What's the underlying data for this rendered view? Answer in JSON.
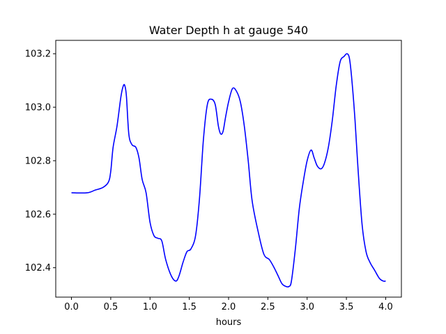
{
  "chart_data": {
    "type": "line",
    "title": "Water Depth h at gauge 540",
    "xlabel": "hours",
    "ylabel": "",
    "xlim": [
      -0.2,
      4.2
    ],
    "ylim": [
      102.29,
      103.25
    ],
    "xticks": [
      0.0,
      0.5,
      1.0,
      1.5,
      2.0,
      2.5,
      3.0,
      3.5,
      4.0
    ],
    "xtick_labels": [
      "0.0",
      "0.5",
      "1.0",
      "1.5",
      "2.0",
      "2.5",
      "3.0",
      "3.5",
      "4.0"
    ],
    "yticks": [
      102.4,
      102.6,
      102.8,
      103.0,
      103.2
    ],
    "ytick_labels": [
      "102.4",
      "102.6",
      "102.8",
      "103.0",
      "103.2"
    ],
    "grid": false,
    "series": [
      {
        "color": "#0000ff",
        "x": [
          0.0,
          0.2,
          0.3,
          0.4,
          0.47,
          0.5,
          0.53,
          0.58,
          0.63,
          0.66,
          0.68,
          0.7,
          0.73,
          0.77,
          0.82,
          0.86,
          0.9,
          0.95,
          1.0,
          1.05,
          1.1,
          1.15,
          1.2,
          1.27,
          1.33,
          1.37,
          1.42,
          1.47,
          1.52,
          1.58,
          1.63,
          1.68,
          1.73,
          1.78,
          1.83,
          1.87,
          1.9,
          1.93,
          1.96,
          2.0,
          2.05,
          2.1,
          2.15,
          2.2,
          2.25,
          2.3,
          2.38,
          2.45,
          2.52,
          2.58,
          2.63,
          2.68,
          2.73,
          2.77,
          2.8,
          2.85,
          2.9,
          2.95,
          3.0,
          3.05,
          3.09,
          3.13,
          3.18,
          3.22,
          3.27,
          3.32,
          3.37,
          3.42,
          3.47,
          3.51,
          3.54,
          3.57,
          3.61,
          3.65,
          3.7,
          3.75,
          3.8,
          3.86,
          3.92,
          3.97,
          4.0
        ],
        "y": [
          102.68,
          102.68,
          102.69,
          102.7,
          102.72,
          102.76,
          102.85,
          102.93,
          103.04,
          103.08,
          103.08,
          103.04,
          102.9,
          102.86,
          102.85,
          102.81,
          102.73,
          102.68,
          102.57,
          102.52,
          102.51,
          102.5,
          102.43,
          102.37,
          102.35,
          102.37,
          102.42,
          102.46,
          102.47,
          102.52,
          102.66,
          102.88,
          103.01,
          103.03,
          103.01,
          102.93,
          102.9,
          102.91,
          102.96,
          103.02,
          103.07,
          103.06,
          103.02,
          102.93,
          102.8,
          102.65,
          102.53,
          102.45,
          102.43,
          102.4,
          102.37,
          102.34,
          102.33,
          102.33,
          102.35,
          102.47,
          102.62,
          102.72,
          102.8,
          102.84,
          102.81,
          102.78,
          102.77,
          102.79,
          102.85,
          102.95,
          103.08,
          103.17,
          103.19,
          103.2,
          103.18,
          103.1,
          102.95,
          102.76,
          102.56,
          102.46,
          102.42,
          102.39,
          102.36,
          102.35,
          102.35
        ]
      }
    ]
  }
}
